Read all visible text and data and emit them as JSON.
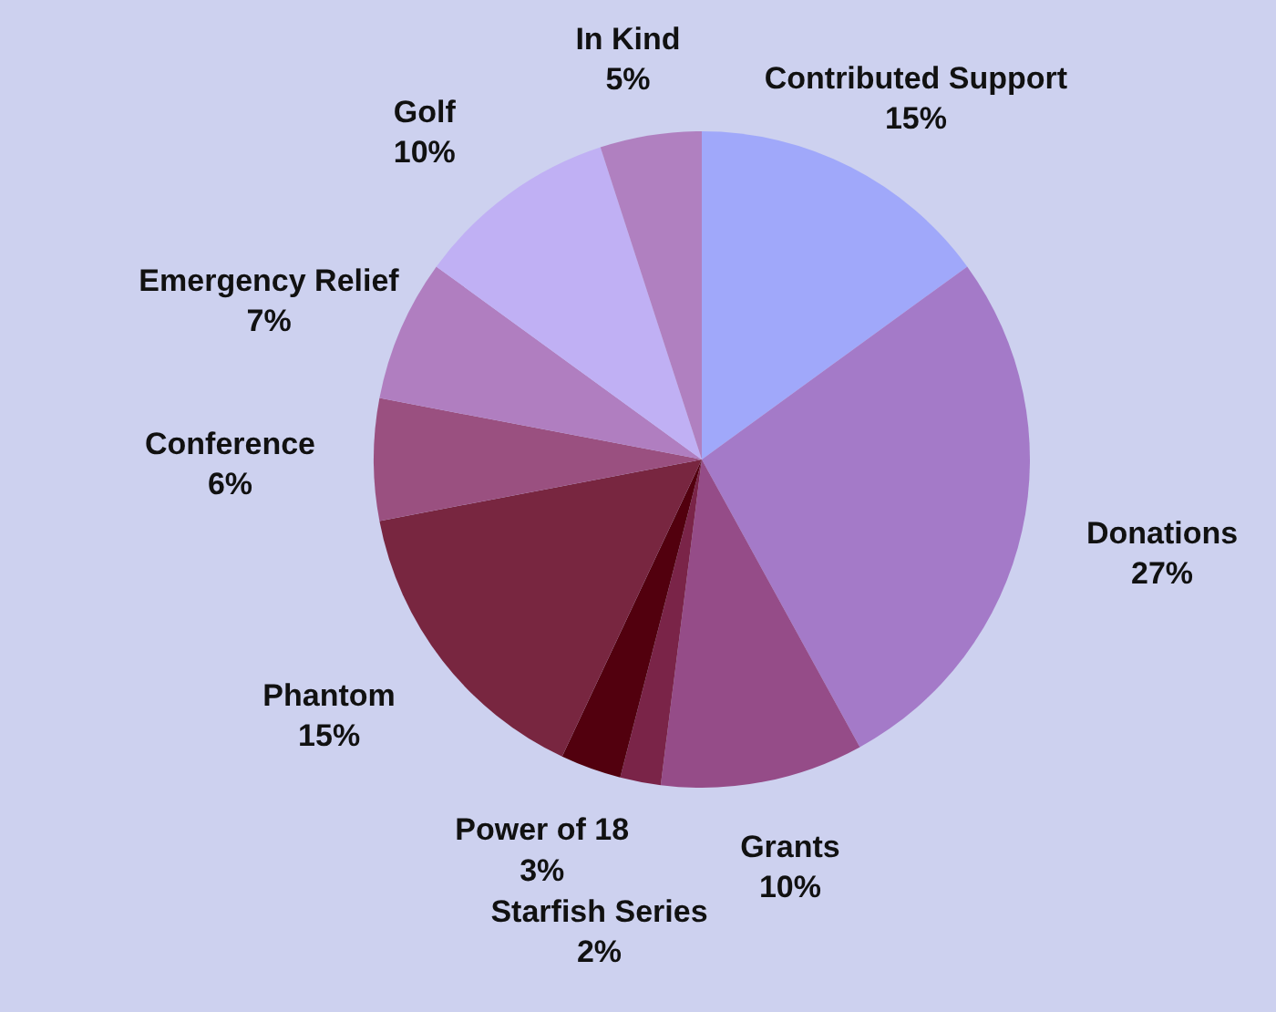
{
  "chart_data": {
    "type": "pie",
    "categories": [
      "Contributed Support",
      "Donations",
      "Grants",
      "Starfish Series",
      "Power of 18",
      "Phantom",
      "Conference",
      "Emergency Relief",
      "Golf",
      "In Kind"
    ],
    "values": [
      15,
      27,
      10,
      2,
      3,
      15,
      6,
      7,
      10,
      5
    ],
    "value_labels": [
      "15%",
      "27%",
      "10%",
      "2%",
      "3%",
      "15%",
      "6%",
      "7%",
      "10%",
      "5%"
    ],
    "colors": [
      "#a0a8fa",
      "#a47ac8",
      "#954c88",
      "#7a2448",
      "#52000e",
      "#782640",
      "#9a5080",
      "#b07ec0",
      "#c0b0f4",
      "#b080c0"
    ]
  }
}
